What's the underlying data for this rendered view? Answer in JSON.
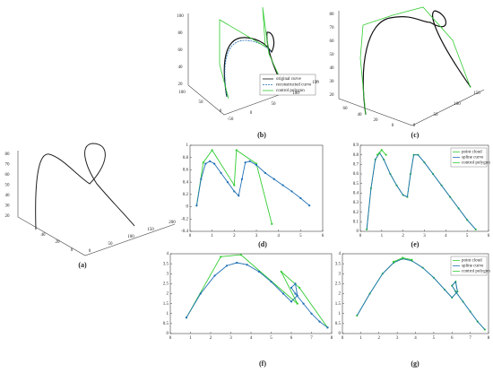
{
  "figures": [
    {
      "label": "(a)",
      "zticks": [
        "80",
        "70",
        "60",
        "50",
        "40",
        "30",
        "20"
      ],
      "xticks": [
        "40",
        "20",
        "0"
      ],
      "yticks": [
        "0",
        "50",
        "100",
        "150",
        "200"
      ]
    },
    {
      "label": "(b)",
      "zticks": [
        "100",
        "80",
        "60",
        "40",
        "20"
      ],
      "xticks": [
        "100",
        "50",
        "0"
      ],
      "yticks": [
        "-50",
        "0",
        "50",
        "100",
        "150"
      ],
      "legend": [
        "original curve",
        "reconstructed curve",
        "control polygon"
      ]
    },
    {
      "label": "(c)",
      "zticks": [
        "80",
        "70",
        "60",
        "50",
        "40",
        "30",
        "20"
      ],
      "xticks": [
        "60",
        "40",
        "20",
        "0"
      ],
      "yticks": [
        "0",
        "50",
        "100",
        "150"
      ]
    }
  ],
  "chart_data": [
    {
      "type": "line",
      "label": "(d)",
      "xlim": [
        0,
        6
      ],
      "ylim": [
        -0.4,
        1
      ],
      "xticks": [
        0,
        1,
        2,
        3,
        4,
        5,
        6
      ],
      "yticks": [
        -0.4,
        -0.2,
        0,
        0.2,
        0.4,
        0.6,
        0.8,
        1
      ],
      "series": [
        {
          "color": "#33cc33",
          "marker": true,
          "x": [
            0.3,
            0.6,
            1.0,
            2.0,
            2.1,
            3.0,
            3.7
          ],
          "values": [
            0.02,
            0.72,
            0.92,
            0.35,
            0.92,
            0.7,
            -0.28
          ]
        },
        {
          "color": "#1f6fb5",
          "marker": true,
          "x": [
            0.3,
            0.5,
            0.7,
            0.9,
            1.1,
            1.4,
            1.7,
            2.0,
            2.2,
            2.35,
            2.5,
            2.7,
            3.0,
            3.4,
            3.8,
            4.2,
            4.6,
            5.0,
            5.4
          ],
          "values": [
            0.02,
            0.45,
            0.7,
            0.74,
            0.7,
            0.55,
            0.4,
            0.25,
            0.18,
            0.45,
            0.72,
            0.74,
            0.68,
            0.55,
            0.45,
            0.35,
            0.25,
            0.14,
            0.02
          ]
        }
      ]
    },
    {
      "type": "line",
      "label": "(e)",
      "xlim": [
        0,
        6
      ],
      "ylim": [
        0,
        0.9
      ],
      "xticks": [
        0,
        1,
        2,
        3,
        4,
        5,
        6
      ],
      "yticks": [
        0,
        0.1,
        0.2,
        0.3,
        0.4,
        0.5,
        0.6,
        0.7,
        0.8,
        0.9
      ],
      "legend": "upper right",
      "series": [
        {
          "name": "point cloud",
          "color": "#33cc33",
          "marker": true,
          "x": [
            0.3,
            0.5,
            0.7,
            0.9,
            1.1,
            1.4,
            1.7,
            2.0,
            2.2,
            2.35,
            2.5,
            2.7,
            3.0,
            3.4,
            3.8,
            4.2,
            4.6,
            5.0,
            5.4
          ],
          "values": [
            0.02,
            0.45,
            0.75,
            0.82,
            0.75,
            0.6,
            0.48,
            0.38,
            0.36,
            0.6,
            0.8,
            0.8,
            0.72,
            0.6,
            0.48,
            0.36,
            0.24,
            0.12,
            0.02
          ]
        },
        {
          "name": "spline curve",
          "color": "#1f6fb5",
          "marker": false,
          "x": [
            0.3,
            0.5,
            0.7,
            0.9,
            1.1,
            1.4,
            1.7,
            2.0,
            2.2,
            2.35,
            2.5,
            2.7,
            3.0,
            3.4,
            3.8,
            4.2,
            4.6,
            5.0,
            5.4
          ],
          "values": [
            0.02,
            0.45,
            0.75,
            0.82,
            0.75,
            0.6,
            0.48,
            0.38,
            0.36,
            0.6,
            0.8,
            0.8,
            0.72,
            0.6,
            0.48,
            0.36,
            0.24,
            0.12,
            0.02
          ]
        },
        {
          "name": "control polygon",
          "color": "#33cc33",
          "marker": true,
          "x": [
            0.8,
            1.0,
            1.2
          ],
          "values": [
            0.8,
            0.85,
            0.8
          ]
        }
      ]
    },
    {
      "type": "line",
      "label": "(f)",
      "xlim": [
        0,
        8
      ],
      "ylim": [
        0,
        4
      ],
      "xticks": [
        0,
        1,
        2,
        3,
        4,
        5,
        6,
        7,
        8
      ],
      "yticks": [
        0,
        0.5,
        1,
        1.5,
        2,
        2.5,
        3,
        3.5,
        4
      ],
      "series": [
        {
          "color": "#33cc33",
          "marker": true,
          "x": [
            0.8,
            2.5,
            3.5,
            6.3,
            5.5,
            6.4,
            7.8
          ],
          "values": [
            0.8,
            3.85,
            3.95,
            1.5,
            3.1,
            2.3,
            0.3
          ]
        },
        {
          "color": "#1f6fb5",
          "marker": true,
          "x": [
            0.8,
            1.5,
            2.2,
            2.8,
            3.3,
            3.8,
            4.4,
            5.0,
            5.6,
            6.0,
            6.3,
            6.2,
            6.0,
            6.2,
            6.6,
            7.0,
            7.4,
            7.8
          ],
          "values": [
            0.8,
            2.0,
            2.9,
            3.4,
            3.55,
            3.45,
            3.1,
            2.6,
            2.0,
            1.6,
            1.9,
            2.5,
            2.3,
            2.0,
            1.5,
            1.0,
            0.6,
            0.3
          ]
        }
      ]
    },
    {
      "type": "line",
      "label": "(g)",
      "xlim": [
        0,
        8
      ],
      "ylim": [
        0,
        4
      ],
      "xticks": [
        0,
        1,
        2,
        3,
        4,
        5,
        6,
        7,
        8
      ],
      "yticks": [
        0,
        0.5,
        1,
        1.5,
        2,
        2.5,
        3,
        3.5,
        4
      ],
      "legend": "upper right",
      "series": [
        {
          "name": "point cloud",
          "color": "#33cc33",
          "marker": true,
          "x": [
            0.8,
            1.5,
            2.2,
            2.8,
            3.3,
            3.8,
            4.4,
            5.0,
            5.6,
            6.0,
            6.3,
            6.2,
            6.0,
            6.2,
            6.6,
            7.0,
            7.4,
            7.8
          ],
          "values": [
            0.9,
            2.0,
            3.0,
            3.55,
            3.75,
            3.65,
            3.3,
            2.8,
            2.2,
            1.8,
            2.1,
            2.6,
            2.4,
            2.1,
            1.6,
            1.1,
            0.6,
            0.2
          ]
        },
        {
          "name": "spline curve",
          "color": "#1f6fb5",
          "marker": false,
          "x": [
            0.8,
            1.5,
            2.2,
            2.8,
            3.3,
            3.8,
            4.4,
            5.0,
            5.6,
            6.0,
            6.3,
            6.2,
            6.0,
            6.2,
            6.6,
            7.0,
            7.4,
            7.8
          ],
          "values": [
            0.9,
            2.0,
            3.0,
            3.55,
            3.75,
            3.65,
            3.3,
            2.8,
            2.2,
            1.8,
            2.1,
            2.6,
            2.4,
            2.1,
            1.6,
            1.1,
            0.6,
            0.2
          ]
        },
        {
          "name": "control polygon",
          "color": "#33cc33",
          "marker": true,
          "x": [
            2.8,
            3.3,
            3.8
          ],
          "values": [
            3.6,
            3.8,
            3.7
          ]
        }
      ]
    }
  ]
}
